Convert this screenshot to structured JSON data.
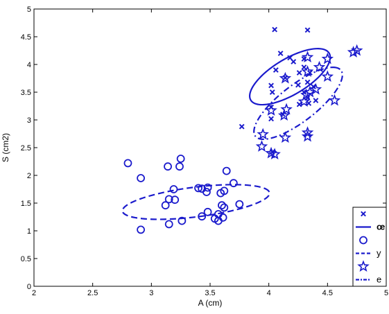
{
  "chart_data": {
    "type": "scatter",
    "xlabel": "A (cm)",
    "ylabel": "S (cm2)",
    "xlim": [
      2,
      5
    ],
    "ylim": [
      0,
      5
    ],
    "x_ticks": [
      2,
      2.5,
      3,
      3.5,
      4,
      4.5,
      5
    ],
    "x_tick_labels": [
      "2",
      "2.5",
      "3",
      "3.5",
      "4",
      "4.5",
      "5"
    ],
    "y_ticks": [
      0,
      0.5,
      1,
      1.5,
      2,
      2.5,
      3,
      3.5,
      4,
      4.5,
      5
    ],
    "y_tick_labels": [
      "0",
      "0.5",
      "1",
      "1.5",
      "2",
      "2.5",
      "3",
      "3.5",
      "4",
      "4.5",
      "5"
    ],
    "grid": false,
    "legend_position": "bottom-right",
    "color": "#1a1acc",
    "series": [
      {
        "name": "œ",
        "marker": "x-icon",
        "points": [
          [
            4.05,
            4.63
          ],
          [
            4.33,
            4.62
          ],
          [
            4.1,
            4.2
          ],
          [
            4.18,
            4.12
          ],
          [
            4.3,
            4.1
          ],
          [
            4.21,
            4.05
          ],
          [
            4.3,
            3.95
          ],
          [
            4.06,
            3.9
          ],
          [
            4.26,
            3.85
          ],
          [
            4.35,
            3.85
          ],
          [
            4.14,
            3.76
          ],
          [
            4.33,
            3.68
          ],
          [
            4.25,
            3.63
          ],
          [
            4.02,
            3.62
          ],
          [
            4.38,
            3.6
          ],
          [
            4.03,
            3.5
          ],
          [
            4.3,
            3.5
          ],
          [
            4.33,
            3.4
          ],
          [
            4.4,
            3.35
          ],
          [
            4.34,
            3.3
          ],
          [
            4.26,
            3.28
          ],
          [
            4.02,
            3.23
          ],
          [
            4.12,
            3.1
          ],
          [
            4.02,
            3.02
          ],
          [
            3.77,
            2.88
          ],
          [
            4.03,
            2.42
          ]
        ],
        "ellipse": {
          "cx": 4.18,
          "cy": 3.78,
          "rx": 0.57,
          "ry": 0.22,
          "angle_deg": 60,
          "line_style": "solid"
        }
      },
      {
        "name": "y",
        "marker": "circle-icon",
        "points": [
          [
            2.8,
            2.22
          ],
          [
            3.25,
            2.3
          ],
          [
            3.14,
            2.16
          ],
          [
            3.24,
            2.16
          ],
          [
            3.64,
            2.08
          ],
          [
            2.91,
            1.95
          ],
          [
            3.7,
            1.86
          ],
          [
            3.4,
            1.77
          ],
          [
            3.19,
            1.75
          ],
          [
            3.43,
            1.76
          ],
          [
            3.48,
            1.78
          ],
          [
            3.62,
            1.72
          ],
          [
            3.47,
            1.7
          ],
          [
            3.59,
            1.68
          ],
          [
            3.15,
            1.57
          ],
          [
            3.2,
            1.56
          ],
          [
            3.12,
            1.46
          ],
          [
            3.6,
            1.46
          ],
          [
            3.75,
            1.48
          ],
          [
            3.62,
            1.42
          ],
          [
            3.48,
            1.34
          ],
          [
            3.57,
            1.3
          ],
          [
            3.54,
            1.22
          ],
          [
            3.61,
            1.24
          ],
          [
            3.43,
            1.26
          ],
          [
            3.26,
            1.18
          ],
          [
            3.15,
            1.12
          ],
          [
            3.57,
            1.18
          ],
          [
            2.91,
            1.02
          ]
        ],
        "ellipse": {
          "cx": 3.38,
          "cy": 1.52,
          "rx": 0.65,
          "ry": 0.26,
          "angle_deg": 17,
          "line_style": "dashed"
        }
      },
      {
        "name": "e",
        "marker": "star-icon",
        "points": [
          [
            4.75,
            4.25
          ],
          [
            4.72,
            4.22
          ],
          [
            4.5,
            4.1
          ],
          [
            4.33,
            4.13
          ],
          [
            4.43,
            3.95
          ],
          [
            4.33,
            3.87
          ],
          [
            4.5,
            3.78
          ],
          [
            4.14,
            3.75
          ],
          [
            4.4,
            3.55
          ],
          [
            4.35,
            3.5
          ],
          [
            4.32,
            3.45
          ],
          [
            4.56,
            3.35
          ],
          [
            4.3,
            3.33
          ],
          [
            4.15,
            3.19
          ],
          [
            4.02,
            3.17
          ],
          [
            4.13,
            3.08
          ],
          [
            3.95,
            2.74
          ],
          [
            4.33,
            2.77
          ],
          [
            4.14,
            2.68
          ],
          [
            4.33,
            2.7
          ],
          [
            3.94,
            2.52
          ],
          [
            4.02,
            2.4
          ],
          [
            4.05,
            2.38
          ]
        ],
        "ellipse": {
          "cx": 4.25,
          "cy": 3.3,
          "rx": 0.72,
          "ry": 0.21,
          "angle_deg": 63,
          "line_style": "dash-dot"
        }
      }
    ]
  }
}
